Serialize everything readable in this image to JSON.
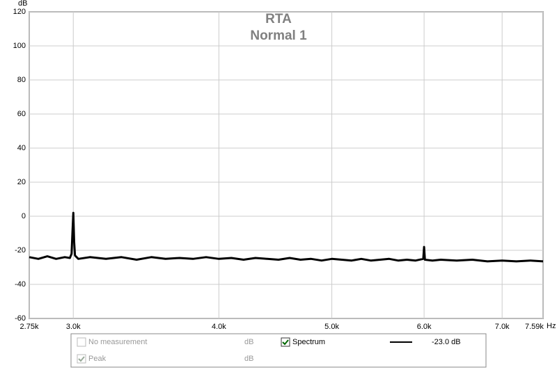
{
  "chart_data": {
    "type": "line",
    "title": "RTA",
    "subtitle": "Normal 1",
    "y_label": "dB",
    "x_label": "Hz",
    "xscale": "log",
    "grid": true,
    "xlim": [
      2750,
      7590
    ],
    "xticks": [
      {
        "value": 2750,
        "label": "2.75k"
      },
      {
        "value": 3000,
        "label": "3.0k"
      },
      {
        "value": 4000,
        "label": "4.0k"
      },
      {
        "value": 5000,
        "label": "5.0k"
      },
      {
        "value": 6000,
        "label": "6.0k"
      },
      {
        "value": 7000,
        "label": "7.0k"
      },
      {
        "value": 7590,
        "label": "7.59k"
      }
    ],
    "ylim": [
      -60,
      120
    ],
    "yticks": [
      -60,
      -40,
      -20,
      0,
      20,
      40,
      60,
      80,
      100,
      120
    ],
    "x": [
      2750,
      2800,
      2850,
      2900,
      2950,
      2980,
      2990,
      2995,
      3000,
      3005,
      3010,
      3030,
      3100,
      3200,
      3300,
      3400,
      3500,
      3600,
      3700,
      3800,
      3900,
      4000,
      4100,
      4200,
      4300,
      4400,
      4500,
      4600,
      4700,
      4800,
      4900,
      5000,
      5100,
      5200,
      5300,
      5400,
      5500,
      5600,
      5700,
      5800,
      5900,
      5990,
      6000,
      6010,
      6100,
      6200,
      6400,
      6600,
      6800,
      7000,
      7200,
      7400,
      7590
    ],
    "series": [
      {
        "name": "Spectrum",
        "color": "#000000",
        "checked": true,
        "readout": "-23.0 dB",
        "values": [
          -24,
          -25,
          -23.5,
          -25,
          -24,
          -24.5,
          -22,
          -10,
          2,
          -15,
          -23,
          -25,
          -24,
          -25,
          -24,
          -25.5,
          -24,
          -25,
          -24.5,
          -25,
          -24,
          -25,
          -24.5,
          -25.5,
          -24.5,
          -25,
          -25.5,
          -24.5,
          -25.5,
          -25,
          -26,
          -25,
          -25.5,
          -26,
          -25,
          -26,
          -25.5,
          -25,
          -26,
          -25.5,
          -26,
          -25,
          -18,
          -25.5,
          -26,
          -25.5,
          -26,
          -25.5,
          -26.5,
          -26,
          -26.5,
          -26,
          -26.5
        ]
      }
    ],
    "legend_items": [
      {
        "name": "No measurement",
        "unit": "dB",
        "checked": false
      },
      {
        "name": "Peak",
        "unit": "dB",
        "checked": true
      }
    ]
  }
}
